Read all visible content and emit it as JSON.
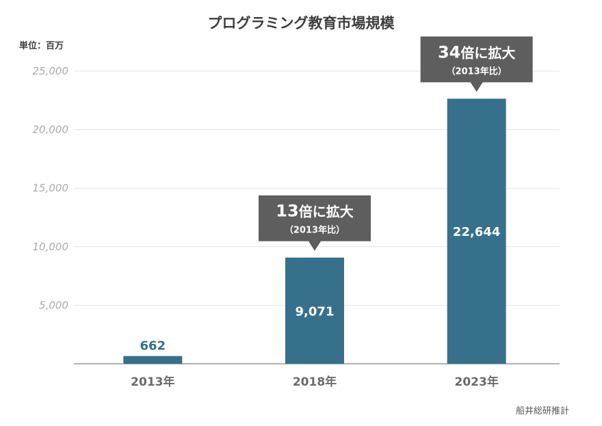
{
  "chart_data": {
    "type": "bar",
    "title": "プログラミング教育市場規模",
    "unit_label": "単位：百万",
    "categories": [
      "2013年",
      "2018年",
      "2023年"
    ],
    "values": [
      662,
      9071,
      22644
    ],
    "value_labels": [
      "662",
      "9,071",
      "22,644"
    ],
    "ylim": [
      0,
      25000
    ],
    "yticks": [
      5000,
      10000,
      15000,
      20000,
      25000
    ],
    "ytick_labels": [
      "5,000",
      "10,000",
      "15,000",
      "20,000",
      "25,000"
    ],
    "grid": true,
    "bar_color": "#36708c",
    "callout_color": "#5e5e5e",
    "annotations": [
      {
        "category": "2018年",
        "main_num": "13",
        "main_text": "倍に拡大",
        "sub": "（2013年比）"
      },
      {
        "category": "2023年",
        "main_num": "34",
        "main_text": "倍に拡大",
        "sub": "（2013年比）"
      }
    ],
    "source": "船井総研推計"
  }
}
